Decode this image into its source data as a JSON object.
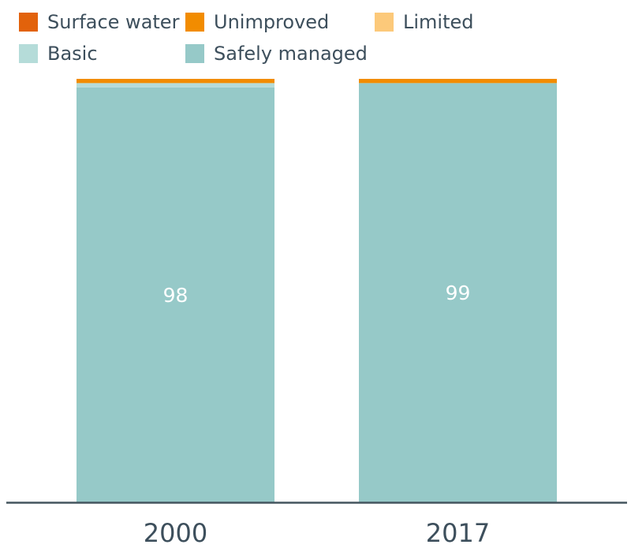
{
  "chart_data": {
    "type": "bar",
    "stacked": true,
    "categories": [
      "2000",
      "2017"
    ],
    "series": [
      {
        "name": "Surface water",
        "color": "#e2620b",
        "values": [
          0,
          0
        ]
      },
      {
        "name": "Unimproved",
        "color": "#f28c00",
        "values": [
          1,
          1
        ]
      },
      {
        "name": "Limited",
        "color": "#fcc97a",
        "values": [
          0,
          0
        ]
      },
      {
        "name": "Basic",
        "color": "#b5dcd9",
        "values": [
          1,
          0
        ]
      },
      {
        "name": "Safely managed",
        "color": "#96c9c8",
        "values": [
          98,
          99
        ]
      }
    ],
    "data_labels": [
      "98",
      "99"
    ],
    "ylim": [
      0,
      100
    ],
    "legend_position": "top",
    "grid": false
  },
  "colors": {
    "axis": "#44555f",
    "text": "#3d4f5c"
  }
}
